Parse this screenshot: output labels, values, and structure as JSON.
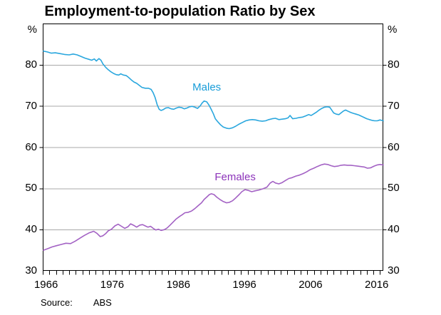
{
  "title": "Employment-to-population Ratio by Sex",
  "source": {
    "label": "Source:",
    "value": "ABS"
  },
  "axes": {
    "unit_left": "%",
    "unit_right": "%",
    "y_tick_labels": [
      30,
      40,
      50,
      60,
      70,
      80
    ],
    "x_tick_labels": [
      1966,
      1976,
      1986,
      1996,
      2006,
      2016
    ]
  },
  "series_labels": {
    "males": "Males",
    "females": "Females"
  },
  "colors": {
    "males_line": "#2AA7DE",
    "males_label": "#189CD8",
    "females_line": "#A362C4",
    "females_label": "#8C33BA",
    "gridline": "#A8A8A8",
    "frame": "#000000"
  },
  "chart_data": {
    "type": "line",
    "title": "Employment-to-population Ratio by Sex",
    "xlabel": "",
    "ylabel": "%",
    "ylim": [
      30,
      90
    ],
    "xlim": [
      1966,
      2017.5
    ],
    "grid": "horizontal, at y=40,50,60,70,80",
    "legend": "inline labels on lines",
    "source": "ABS",
    "x_minor_tick_every_years": 1,
    "series": [
      {
        "name": "Males",
        "label_pos": {
          "year": 1990.8,
          "value": 74.5
        },
        "points": [
          [
            1966.1,
            83.3
          ],
          [
            1966.7,
            83.1
          ],
          [
            1967.3,
            82.8
          ],
          [
            1967.9,
            82.9
          ],
          [
            1968.6,
            82.7
          ],
          [
            1969.3,
            82.5
          ],
          [
            1970.0,
            82.4
          ],
          [
            1970.6,
            82.6
          ],
          [
            1971.2,
            82.4
          ],
          [
            1971.8,
            82.0
          ],
          [
            1972.4,
            81.6
          ],
          [
            1973.0,
            81.3
          ],
          [
            1973.4,
            81.1
          ],
          [
            1973.8,
            81.4
          ],
          [
            1974.1,
            80.9
          ],
          [
            1974.5,
            81.5
          ],
          [
            1974.8,
            81.1
          ],
          [
            1975.1,
            80.2
          ],
          [
            1975.5,
            79.4
          ],
          [
            1975.9,
            78.8
          ],
          [
            1976.3,
            78.3
          ],
          [
            1976.7,
            77.9
          ],
          [
            1977.1,
            77.6
          ],
          [
            1977.5,
            77.5
          ],
          [
            1977.8,
            77.8
          ],
          [
            1978.2,
            77.5
          ],
          [
            1978.6,
            77.4
          ],
          [
            1979.0,
            76.9
          ],
          [
            1979.4,
            76.3
          ],
          [
            1979.8,
            75.8
          ],
          [
            1980.2,
            75.5
          ],
          [
            1980.6,
            75.0
          ],
          [
            1981.0,
            74.5
          ],
          [
            1981.5,
            74.3
          ],
          [
            1982.0,
            74.3
          ],
          [
            1982.4,
            74.0
          ],
          [
            1982.7,
            73.2
          ],
          [
            1983.0,
            72.0
          ],
          [
            1983.3,
            70.3
          ],
          [
            1983.6,
            69.2
          ],
          [
            1983.9,
            68.9
          ],
          [
            1984.2,
            69.1
          ],
          [
            1984.6,
            69.5
          ],
          [
            1985.0,
            69.6
          ],
          [
            1985.4,
            69.3
          ],
          [
            1985.8,
            69.2
          ],
          [
            1986.2,
            69.5
          ],
          [
            1986.6,
            69.7
          ],
          [
            1987.0,
            69.6
          ],
          [
            1987.4,
            69.3
          ],
          [
            1987.8,
            69.5
          ],
          [
            1988.2,
            69.8
          ],
          [
            1988.6,
            69.9
          ],
          [
            1989.0,
            69.7
          ],
          [
            1989.4,
            69.4
          ],
          [
            1989.8,
            70.0
          ],
          [
            1990.1,
            70.7
          ],
          [
            1990.4,
            71.2
          ],
          [
            1990.8,
            71.0
          ],
          [
            1991.1,
            70.3
          ],
          [
            1991.4,
            69.4
          ],
          [
            1991.8,
            68.1
          ],
          [
            1992.1,
            66.9
          ],
          [
            1992.5,
            66.1
          ],
          [
            1992.9,
            65.4
          ],
          [
            1993.3,
            64.9
          ],
          [
            1993.8,
            64.6
          ],
          [
            1994.2,
            64.5
          ],
          [
            1994.7,
            64.7
          ],
          [
            1995.2,
            65.1
          ],
          [
            1995.7,
            65.6
          ],
          [
            1996.2,
            66.0
          ],
          [
            1996.7,
            66.4
          ],
          [
            1997.2,
            66.6
          ],
          [
            1997.7,
            66.7
          ],
          [
            1998.2,
            66.6
          ],
          [
            1998.7,
            66.4
          ],
          [
            1999.2,
            66.3
          ],
          [
            1999.7,
            66.4
          ],
          [
            2000.2,
            66.7
          ],
          [
            2000.7,
            66.9
          ],
          [
            2001.2,
            67.0
          ],
          [
            2001.7,
            66.7
          ],
          [
            2002.2,
            66.8
          ],
          [
            2002.7,
            66.9
          ],
          [
            2003.1,
            67.1
          ],
          [
            2003.4,
            67.7
          ],
          [
            2003.8,
            66.9
          ],
          [
            2004.3,
            67.0
          ],
          [
            2004.8,
            67.2
          ],
          [
            2005.3,
            67.3
          ],
          [
            2005.8,
            67.6
          ],
          [
            2006.2,
            67.9
          ],
          [
            2006.6,
            67.7
          ],
          [
            2007.0,
            68.1
          ],
          [
            2007.4,
            68.5
          ],
          [
            2007.8,
            69.0
          ],
          [
            2008.2,
            69.4
          ],
          [
            2008.6,
            69.7
          ],
          [
            2009.0,
            69.8
          ],
          [
            2009.4,
            69.7
          ],
          [
            2009.7,
            69.0
          ],
          [
            2010.0,
            68.3
          ],
          [
            2010.4,
            68.0
          ],
          [
            2010.8,
            67.9
          ],
          [
            2011.1,
            68.3
          ],
          [
            2011.5,
            68.8
          ],
          [
            2011.8,
            69.0
          ],
          [
            2012.2,
            68.7
          ],
          [
            2012.6,
            68.4
          ],
          [
            2013.0,
            68.2
          ],
          [
            2013.4,
            68.0
          ],
          [
            2013.8,
            67.8
          ],
          [
            2014.2,
            67.5
          ],
          [
            2014.6,
            67.2
          ],
          [
            2015.0,
            66.9
          ],
          [
            2015.4,
            66.7
          ],
          [
            2015.8,
            66.5
          ],
          [
            2016.2,
            66.4
          ],
          [
            2016.6,
            66.4
          ],
          [
            2017.0,
            66.6
          ],
          [
            2017.5,
            66.4
          ]
        ]
      },
      {
        "name": "Females",
        "label_pos": {
          "year": 1995.1,
          "value": 52.6
        },
        "points": [
          [
            1966.1,
            35.0
          ],
          [
            1966.8,
            35.4
          ],
          [
            1967.4,
            35.8
          ],
          [
            1968.1,
            36.1
          ],
          [
            1968.8,
            36.4
          ],
          [
            1969.5,
            36.7
          ],
          [
            1970.2,
            36.6
          ],
          [
            1970.9,
            37.2
          ],
          [
            1971.6,
            37.9
          ],
          [
            1972.3,
            38.6
          ],
          [
            1973.0,
            39.2
          ],
          [
            1973.7,
            39.6
          ],
          [
            1974.2,
            39.1
          ],
          [
            1974.7,
            38.3
          ],
          [
            1975.1,
            38.5
          ],
          [
            1975.5,
            39.0
          ],
          [
            1975.9,
            39.7
          ],
          [
            1976.4,
            40.1
          ],
          [
            1976.9,
            40.9
          ],
          [
            1977.4,
            41.3
          ],
          [
            1977.9,
            40.8
          ],
          [
            1978.4,
            40.3
          ],
          [
            1978.9,
            40.7
          ],
          [
            1979.3,
            41.4
          ],
          [
            1979.8,
            41.0
          ],
          [
            1980.2,
            40.6
          ],
          [
            1980.7,
            41.1
          ],
          [
            1981.1,
            41.2
          ],
          [
            1981.5,
            40.9
          ],
          [
            1981.9,
            40.6
          ],
          [
            1982.3,
            40.8
          ],
          [
            1982.7,
            40.3
          ],
          [
            1983.1,
            39.9
          ],
          [
            1983.5,
            40.1
          ],
          [
            1983.9,
            39.8
          ],
          [
            1984.4,
            40.0
          ],
          [
            1984.8,
            40.4
          ],
          [
            1985.2,
            41.0
          ],
          [
            1985.7,
            41.8
          ],
          [
            1986.2,
            42.6
          ],
          [
            1986.7,
            43.2
          ],
          [
            1987.1,
            43.6
          ],
          [
            1987.5,
            44.1
          ],
          [
            1988.0,
            44.2
          ],
          [
            1988.5,
            44.5
          ],
          [
            1989.0,
            45.1
          ],
          [
            1989.5,
            45.8
          ],
          [
            1990.0,
            46.5
          ],
          [
            1990.4,
            47.3
          ],
          [
            1990.8,
            47.9
          ],
          [
            1991.2,
            48.5
          ],
          [
            1991.5,
            48.7
          ],
          [
            1991.9,
            48.5
          ],
          [
            1992.3,
            47.9
          ],
          [
            1992.8,
            47.3
          ],
          [
            1993.3,
            46.8
          ],
          [
            1993.8,
            46.5
          ],
          [
            1994.2,
            46.6
          ],
          [
            1994.7,
            47.0
          ],
          [
            1995.2,
            47.7
          ],
          [
            1995.7,
            48.5
          ],
          [
            1996.1,
            49.2
          ],
          [
            1996.6,
            49.7
          ],
          [
            1997.1,
            49.5
          ],
          [
            1997.6,
            49.2
          ],
          [
            1998.1,
            49.4
          ],
          [
            1998.7,
            49.6
          ],
          [
            1999.3,
            49.9
          ],
          [
            1999.9,
            50.3
          ],
          [
            2000.4,
            51.3
          ],
          [
            2000.8,
            51.7
          ],
          [
            2001.2,
            51.3
          ],
          [
            2001.7,
            51.1
          ],
          [
            2002.2,
            51.4
          ],
          [
            2002.7,
            51.9
          ],
          [
            2003.2,
            52.4
          ],
          [
            2003.7,
            52.6
          ],
          [
            2004.3,
            53.0
          ],
          [
            2004.8,
            53.2
          ],
          [
            2005.4,
            53.6
          ],
          [
            2005.9,
            54.0
          ],
          [
            2006.4,
            54.5
          ],
          [
            2007.0,
            54.9
          ],
          [
            2007.5,
            55.3
          ],
          [
            2008.1,
            55.7
          ],
          [
            2008.6,
            55.9
          ],
          [
            2009.1,
            55.8
          ],
          [
            2009.6,
            55.5
          ],
          [
            2010.1,
            55.3
          ],
          [
            2010.6,
            55.4
          ],
          [
            2011.1,
            55.6
          ],
          [
            2011.6,
            55.7
          ],
          [
            2012.1,
            55.6
          ],
          [
            2012.6,
            55.6
          ],
          [
            2013.1,
            55.5
          ],
          [
            2013.6,
            55.4
          ],
          [
            2014.1,
            55.3
          ],
          [
            2014.6,
            55.2
          ],
          [
            2015.1,
            54.9
          ],
          [
            2015.6,
            55.0
          ],
          [
            2016.1,
            55.4
          ],
          [
            2016.6,
            55.7
          ],
          [
            2017.0,
            55.8
          ],
          [
            2017.5,
            55.7
          ]
        ]
      }
    ]
  }
}
